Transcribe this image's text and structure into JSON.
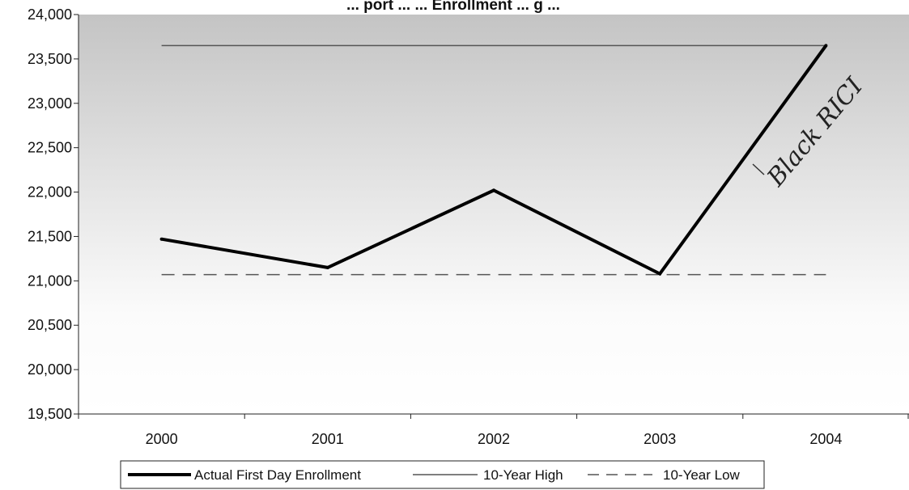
{
  "chart_data": {
    "type": "line",
    "title": "... port ... ... Enrollment ... g ...",
    "categories": [
      "2000",
      "2001",
      "2002",
      "2003",
      "2004"
    ],
    "y_ticks": [
      "19,500",
      "20,000",
      "20,500",
      "21,000",
      "21,500",
      "22,000",
      "22,500",
      "23,000",
      "23,500",
      "24,000"
    ],
    "ylim": [
      19500,
      24000
    ],
    "grid": false,
    "legend_position": "bottom",
    "series": [
      {
        "name": "Actual First Day Enrollment",
        "style": "thick-solid",
        "color": "#000000",
        "values": [
          21470,
          21150,
          22020,
          21080,
          23650
        ]
      },
      {
        "name": "10-Year High",
        "style": "thin-solid",
        "color": "#555555",
        "values": [
          23650,
          23650,
          23650,
          23650,
          23650
        ]
      },
      {
        "name": "10-Year Low",
        "style": "dashed",
        "color": "#555555",
        "values": [
          21070,
          21070,
          21070,
          21070,
          21070
        ]
      }
    ],
    "annotation": {
      "text": "Black RICI",
      "near": "2003-2004 segment",
      "style": "handwritten"
    }
  }
}
